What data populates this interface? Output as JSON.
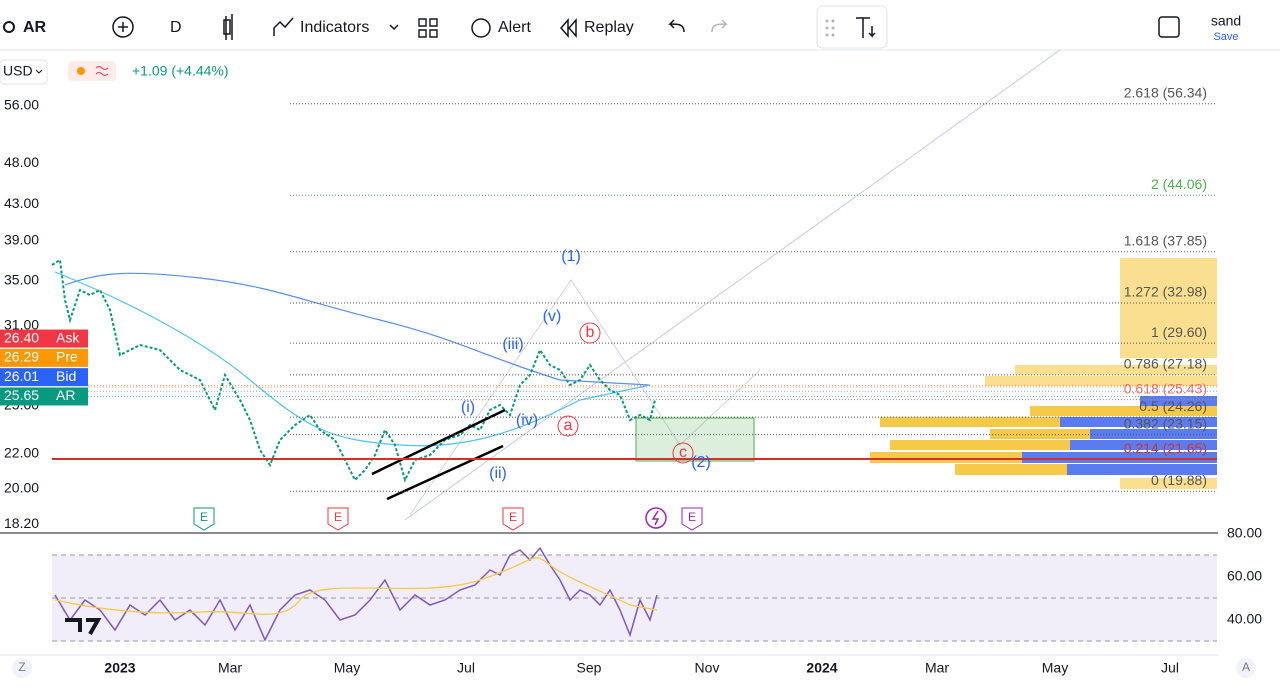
{
  "toolbar": {
    "symbol": "AR",
    "interval": "D",
    "indicators": "Indicators",
    "alert": "Alert",
    "replay": "Replay",
    "user": "sand",
    "save": "Save"
  },
  "header": {
    "currency": "USD",
    "change": "+1.09 (+4.44%)"
  },
  "price_axis": [
    {
      "value": 56,
      "label": "56.00"
    },
    {
      "value": 48,
      "label": "48.00"
    },
    {
      "value": 43,
      "label": "43.00"
    },
    {
      "value": 39,
      "label": "39.00"
    },
    {
      "value": 35,
      "label": "35.00"
    },
    {
      "value": 31,
      "label": "31.00"
    },
    {
      "value": 25,
      "label": "25.00"
    },
    {
      "value": 22,
      "label": "22.00"
    },
    {
      "value": 20,
      "label": "20.00"
    },
    {
      "value": 18.2,
      "label": "18.20"
    }
  ],
  "price_badges": [
    {
      "tag": "Ask",
      "value": 26.4,
      "label": "26.40",
      "color": "#f23645"
    },
    {
      "tag": "Pre",
      "value": 26.29,
      "label": "26.29",
      "color": "#ff9800"
    },
    {
      "tag": "Bid",
      "value": 26.01,
      "label": "26.01",
      "color": "#2962ff"
    },
    {
      "tag": "AR",
      "value": 25.65,
      "label": "25.65",
      "color": "#089981"
    }
  ],
  "fib_levels": [
    {
      "price": 56.34,
      "label": "2.618 (56.34)",
      "color": "#555"
    },
    {
      "price": 44.06,
      "label": "2 (44.06)",
      "color": "#4caf50"
    },
    {
      "price": 37.85,
      "label": "1.618 (37.85)",
      "color": "#555"
    },
    {
      "price": 32.98,
      "label": "1.272 (32.98)",
      "color": "#555"
    },
    {
      "price": 29.6,
      "label": "1 (29.60)",
      "color": "#555"
    },
    {
      "price": 27.18,
      "label": "0.786 (27.18)",
      "color": "#555"
    },
    {
      "price": 25.43,
      "label": "0.618 (25.43)",
      "color": "#e57373"
    },
    {
      "price": 24.26,
      "label": "0.5 (24.26)",
      "color": "#555"
    },
    {
      "price": 23.15,
      "label": "0.382 (23.15)",
      "color": "#555"
    },
    {
      "price": 21.65,
      "label": "0.214 (21.65)",
      "color": "#d32f2f"
    },
    {
      "price": 19.88,
      "label": "0 (19.88)",
      "color": "#555"
    }
  ],
  "wave_labels": [
    {
      "text": "(1)",
      "color": "#2962ff"
    },
    {
      "text": "(v)",
      "color": "#2962ff"
    },
    {
      "text": "(iii)",
      "color": "#2962ff"
    },
    {
      "text": "(i)",
      "color": "#2962ff"
    },
    {
      "text": "(iv)",
      "color": "#2962ff"
    },
    {
      "text": "(ii)",
      "color": "#2962ff"
    },
    {
      "text": "b",
      "color": "#f23645"
    },
    {
      "text": "a",
      "color": "#f23645"
    },
    {
      "text": "c",
      "color": "#f23645"
    },
    {
      "text": "(2)",
      "color": "#2962ff"
    }
  ],
  "events": [
    {
      "text": "E",
      "color": "#089981"
    },
    {
      "text": "E",
      "color": "#f23645"
    },
    {
      "text": "E",
      "color": "#f23645"
    },
    {
      "text": "E",
      "color": "#9c27b0"
    }
  ],
  "rsi_axis": [
    {
      "value": 80,
      "label": "80.00"
    },
    {
      "value": 60,
      "label": "60.00"
    },
    {
      "value": 40,
      "label": "40.00"
    }
  ],
  "time_axis": [
    "2023",
    "Mar",
    "May",
    "Jul",
    "Sep",
    "Nov",
    "2024",
    "Mar",
    "May",
    "Jul"
  ],
  "scale_buttons": [
    "Z",
    "A"
  ]
}
